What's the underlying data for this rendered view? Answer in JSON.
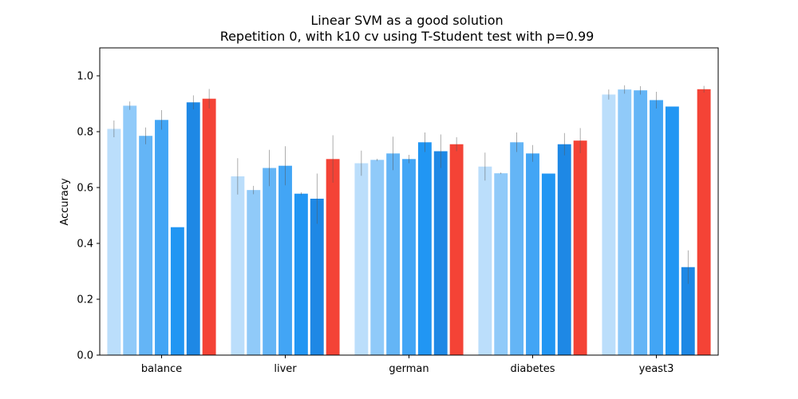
{
  "chart_data": {
    "type": "bar",
    "title": "Linear SVM as a good solution",
    "subtitle": "Repetition 0, with k10 cv using T-Student test with p=0.99",
    "xlabel": "",
    "ylabel": "Accuracy",
    "ylim": [
      0,
      1.1
    ],
    "yticks": [
      "0.0",
      "0.2",
      "0.4",
      "0.6",
      "0.8",
      "1.0"
    ],
    "grid": false,
    "categories": [
      "balance",
      "liver",
      "german",
      "diabetes",
      "yeast3"
    ],
    "series": [
      {
        "color": "#bbdefb",
        "values": [
          0.81,
          0.64,
          0.687,
          0.675,
          0.933
        ],
        "errors": [
          0.03,
          0.065,
          0.045,
          0.05,
          0.018
        ]
      },
      {
        "color": "#90caf9",
        "values": [
          0.893,
          0.591,
          0.699,
          0.651,
          0.951
        ],
        "errors": [
          0.015,
          0.015,
          0.004,
          0.003,
          0.015
        ]
      },
      {
        "color": "#64b5f6",
        "values": [
          0.785,
          0.67,
          0.722,
          0.762,
          0.948
        ],
        "errors": [
          0.03,
          0.065,
          0.06,
          0.035,
          0.015
        ]
      },
      {
        "color": "#42a5f5",
        "values": [
          0.842,
          0.678,
          0.702,
          0.722,
          0.913
        ],
        "errors": [
          0.035,
          0.07,
          0.015,
          0.03,
          0.03
        ]
      },
      {
        "color": "#2196f3",
        "values": [
          0.458,
          0.578,
          0.762,
          0.65,
          0.89
        ],
        "errors": [
          0.0,
          0.005,
          0.035,
          0.0,
          0.0
        ]
      },
      {
        "color": "#1e88e5",
        "values": [
          0.905,
          0.56,
          0.73,
          0.755,
          0.315
        ],
        "errors": [
          0.025,
          0.09,
          0.06,
          0.04,
          0.06
        ]
      },
      {
        "color": "#f44336",
        "values": [
          0.918,
          0.702,
          0.755,
          0.768,
          0.952
        ],
        "errors": [
          0.035,
          0.085,
          0.025,
          0.045,
          0.012
        ]
      }
    ]
  }
}
